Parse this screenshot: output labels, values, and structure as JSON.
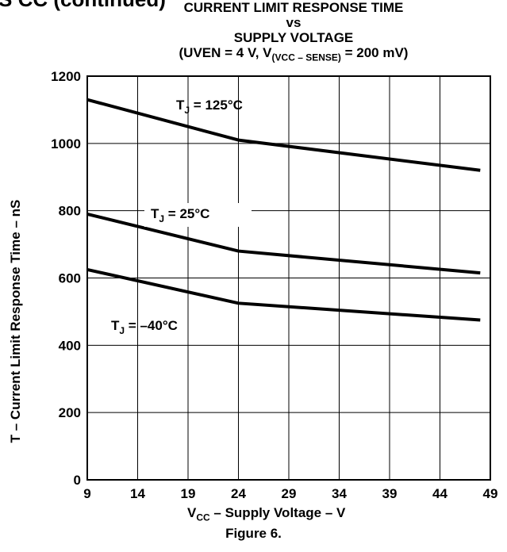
{
  "header_fragment": "S CC (continued)",
  "chart_data": {
    "type": "line",
    "title_lines": [
      "CURRENT LIMIT RESPONSE TIME",
      "vs",
      "SUPPLY VOLTAGE"
    ],
    "conditions": {
      "prefix": "(UVEN = 4 V, V",
      "sub": "(VCC – SENSE)",
      "suffix": " = 200 mV)"
    },
    "xlabel": {
      "prefix": "V",
      "sub": "CC",
      "suffix": " – Supply Voltage – V"
    },
    "ylabel": "T – Current Limit Response Time – nS",
    "xlim": [
      9,
      49
    ],
    "ylim": [
      0,
      1200
    ],
    "x_ticks": [
      9,
      14,
      19,
      24,
      29,
      34,
      39,
      44,
      49
    ],
    "y_ticks": [
      0,
      200,
      400,
      600,
      800,
      1000,
      1200
    ],
    "grid": true,
    "series": [
      {
        "name": "TJ = 125°C",
        "label": {
          "pre": "T",
          "sub": "J",
          "post": " = 125°C"
        },
        "x": [
          9,
          24,
          48
        ],
        "y": [
          1130,
          1010,
          920
        ]
      },
      {
        "name": "TJ = 25°C",
        "label": {
          "pre": "T",
          "sub": "J",
          "post": " = 25°C"
        },
        "x": [
          9,
          24,
          48
        ],
        "y": [
          790,
          680,
          615
        ]
      },
      {
        "name": "TJ = –40°C",
        "label": {
          "pre": "T",
          "sub": "J",
          "post": " = –40°C"
        },
        "x": [
          9,
          24,
          48
        ],
        "y": [
          625,
          525,
          475
        ]
      }
    ]
  },
  "caption": "Figure 6."
}
